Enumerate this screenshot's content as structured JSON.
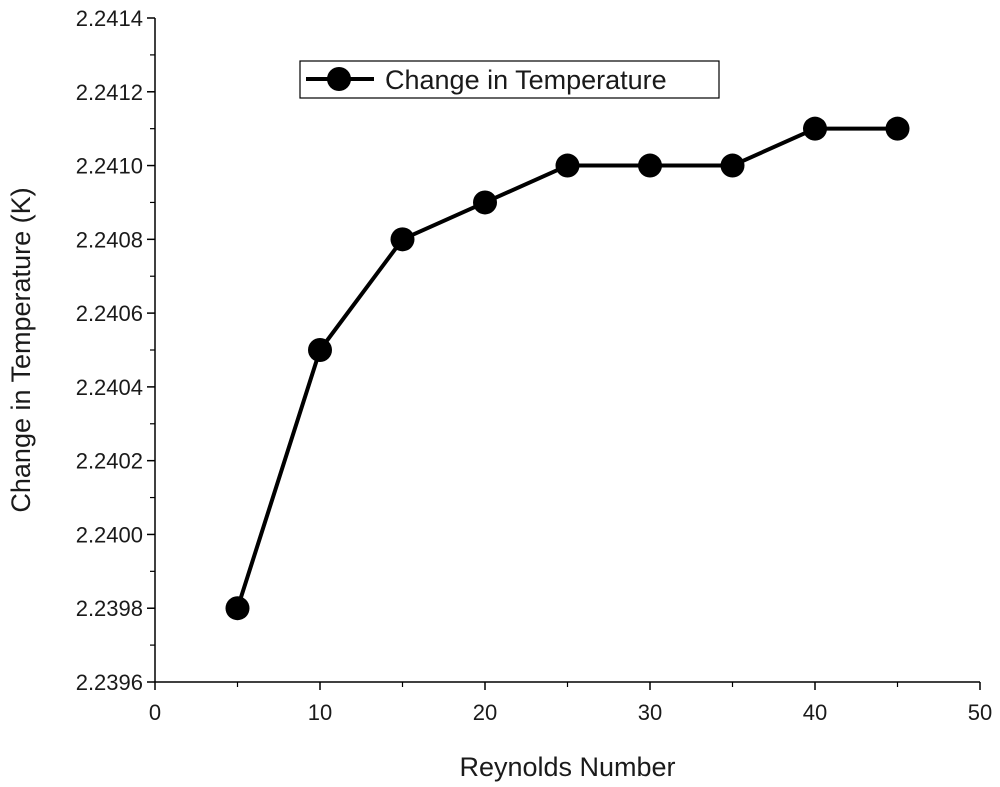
{
  "chart_data": {
    "type": "line",
    "title": "",
    "xlabel": "Reynolds Number",
    "ylabel": "Change in Temperature (K)",
    "xlim": [
      0,
      50
    ],
    "ylim": [
      2.2396,
      2.2414
    ],
    "x_ticks": [
      "0",
      "10",
      "20",
      "30",
      "40",
      "50"
    ],
    "y_ticks": [
      "2.2396",
      "2.2398",
      "2.2400",
      "2.2402",
      "2.2404",
      "2.2406",
      "2.2408",
      "2.2410",
      "2.2412",
      "2.2414"
    ],
    "grid": false,
    "legend_position": "top-center",
    "series": [
      {
        "name": "Change in Temperature",
        "marker": "filled-circle",
        "color": "#000000",
        "x": [
          5,
          10,
          15,
          20,
          25,
          30,
          35,
          40,
          45
        ],
        "values": [
          2.2398,
          2.2405,
          2.2408,
          2.2409,
          2.241,
          2.241,
          2.241,
          2.2411,
          2.2411
        ]
      }
    ]
  }
}
